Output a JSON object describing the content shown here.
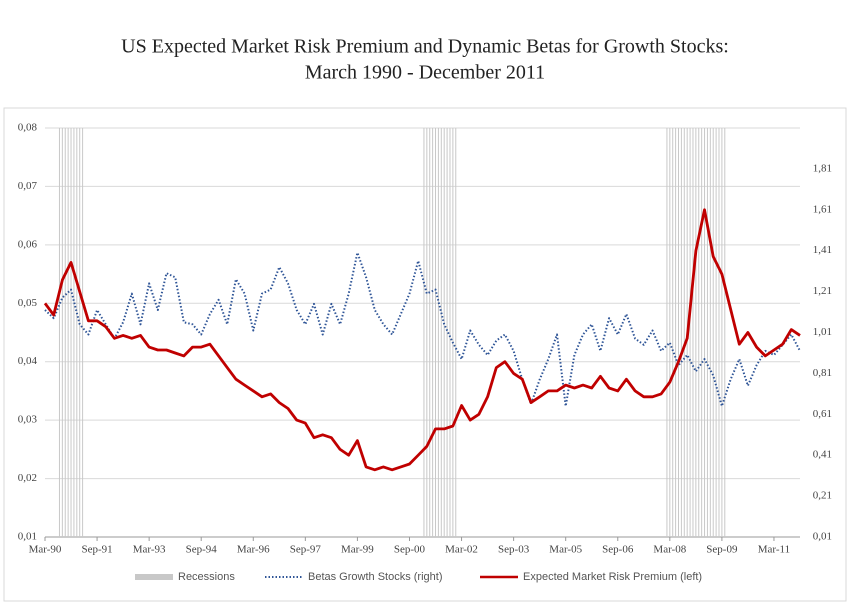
{
  "chart_data": {
    "type": "line",
    "title": [
      "US Expected Market Risk Premium and Dynamic Betas for Growth Stocks:",
      "March 1990 - December 2011"
    ],
    "categories": [
      "Mar-90",
      null,
      null,
      null,
      null,
      null,
      "Sep-91",
      null,
      null,
      null,
      null,
      null,
      "Mar-93",
      null,
      null,
      null,
      null,
      null,
      "Sep-94",
      null,
      null,
      null,
      null,
      null,
      "Mar-96",
      null,
      null,
      null,
      null,
      null,
      "Sep-97",
      null,
      null,
      null,
      null,
      null,
      "Mar-99",
      null,
      null,
      null,
      null,
      null,
      "Sep-00",
      null,
      null,
      null,
      null,
      null,
      "Mar-02",
      null,
      null,
      null,
      null,
      null,
      "Sep-03",
      null,
      null,
      null,
      null,
      null,
      "Mar-05",
      null,
      null,
      null,
      null,
      null,
      "Sep-06",
      null,
      null,
      null,
      null,
      null,
      "Mar-08",
      null,
      null,
      null,
      null,
      null,
      "Sep-09",
      null,
      null,
      null,
      null,
      null,
      "Mar-11",
      null,
      null,
      null
    ],
    "series": [
      {
        "name": "Recessions",
        "type": "recession",
        "color": "#c8c8c8",
        "values": [
          null,
          null,
          1,
          1,
          1,
          null,
          null,
          null,
          null,
          null,
          null,
          null,
          null,
          null,
          null,
          null,
          null,
          null,
          null,
          null,
          null,
          null,
          null,
          null,
          null,
          null,
          null,
          null,
          null,
          null,
          null,
          null,
          null,
          null,
          null,
          null,
          null,
          null,
          null,
          null,
          null,
          null,
          null,
          null,
          1,
          1,
          1,
          1,
          null,
          null,
          null,
          null,
          null,
          null,
          null,
          null,
          null,
          null,
          null,
          null,
          null,
          null,
          null,
          null,
          null,
          null,
          null,
          null,
          null,
          null,
          null,
          null,
          1,
          1,
          1,
          1,
          1,
          1,
          1,
          null,
          null,
          null,
          null,
          null,
          null,
          null,
          null,
          null
        ]
      },
      {
        "name": "Betas Growth Stocks (right)",
        "type": "dotted",
        "axis": "y2",
        "color": "#2f5597",
        "values": [
          1.12,
          1.08,
          1.18,
          1.22,
          1.05,
          1.0,
          1.12,
          1.05,
          0.98,
          1.06,
          1.2,
          1.05,
          1.25,
          1.12,
          1.3,
          1.28,
          1.06,
          1.05,
          1.0,
          1.1,
          1.17,
          1.05,
          1.27,
          1.2,
          1.02,
          1.2,
          1.22,
          1.33,
          1.25,
          1.12,
          1.05,
          1.15,
          1.0,
          1.15,
          1.05,
          1.2,
          1.4,
          1.28,
          1.12,
          1.05,
          1.0,
          1.1,
          1.2,
          1.36,
          1.2,
          1.22,
          1.05,
          0.96,
          0.88,
          1.02,
          0.95,
          0.9,
          0.97,
          1.0,
          0.92,
          0.78,
          0.66,
          0.78,
          0.88,
          1.0,
          0.65,
          0.9,
          1.0,
          1.05,
          0.92,
          1.08,
          1.0,
          1.1,
          0.98,
          0.95,
          1.02,
          0.92,
          0.96,
          0.85,
          0.9,
          0.82,
          0.88,
          0.8,
          0.65,
          0.78,
          0.88,
          0.75,
          0.85,
          0.92,
          0.9,
          0.95,
          1.0,
          0.92
        ]
      },
      {
        "name": "Expected Market Risk Premium (left)",
        "type": "solid",
        "axis": "y",
        "color": "#c00000",
        "values": [
          0.05,
          0.048,
          0.054,
          0.057,
          0.052,
          0.047,
          0.047,
          0.046,
          0.044,
          0.0445,
          0.044,
          0.0445,
          0.0425,
          0.042,
          0.042,
          0.0415,
          0.041,
          0.0425,
          0.0425,
          0.043,
          0.041,
          0.039,
          0.037,
          0.036,
          0.035,
          0.034,
          0.0345,
          0.033,
          0.032,
          0.03,
          0.0295,
          0.027,
          0.0275,
          0.027,
          0.025,
          0.024,
          0.0265,
          0.022,
          0.0215,
          0.022,
          0.0215,
          0.022,
          0.0225,
          0.024,
          0.0255,
          0.0285,
          0.0285,
          0.029,
          0.0325,
          0.03,
          0.031,
          0.034,
          0.039,
          0.04,
          0.038,
          0.037,
          0.033,
          0.034,
          0.035,
          0.035,
          0.036,
          0.0355,
          0.036,
          0.0355,
          0.0375,
          0.0355,
          0.035,
          0.037,
          0.035,
          0.034,
          0.034,
          0.0345,
          0.0365,
          0.04,
          0.044,
          0.059,
          0.066,
          0.058,
          0.055,
          0.049,
          0.043,
          0.045,
          0.0425,
          0.041,
          0.042,
          0.043,
          0.0455,
          0.0445
        ]
      }
    ],
    "ylim": [
      0.01,
      0.08
    ],
    "yticks": [
      {
        "value": 0.01,
        "label": "0,01"
      },
      {
        "value": 0.02,
        "label": "0,02"
      },
      {
        "value": 0.03,
        "label": "0,03"
      },
      {
        "value": 0.04,
        "label": "0,04"
      },
      {
        "value": 0.05,
        "label": "0,05"
      },
      {
        "value": 0.06,
        "label": "0,06"
      },
      {
        "value": 0.07,
        "label": "0,07"
      },
      {
        "value": 0.08,
        "label": "0,08"
      }
    ],
    "y2lim": [
      0.01,
      2.01
    ],
    "y2ticks": [
      {
        "value": 0.01,
        "label": "0,01"
      },
      {
        "value": 0.21,
        "label": "0,21"
      },
      {
        "value": 0.41,
        "label": "0,41"
      },
      {
        "value": 0.61,
        "label": "0,61"
      },
      {
        "value": 0.81,
        "label": "0,81"
      },
      {
        "value": 1.01,
        "label": "1,01"
      },
      {
        "value": 1.21,
        "label": "1,21"
      },
      {
        "value": 1.41,
        "label": "1,41"
      },
      {
        "value": 1.61,
        "label": "1,61"
      },
      {
        "value": 1.81,
        "label": "1,81"
      }
    ],
    "grid": true,
    "legend": "bottom"
  }
}
